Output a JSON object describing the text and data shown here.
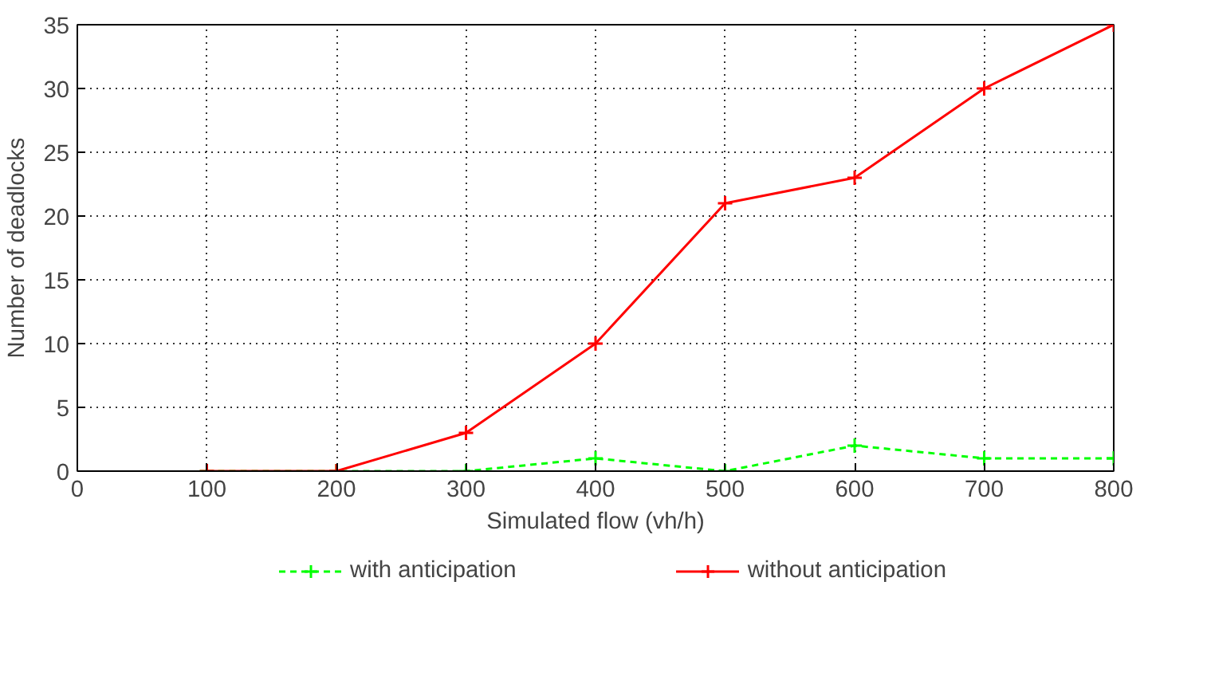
{
  "chart_data": {
    "type": "line",
    "xlabel": "Simulated flow (vh/h)",
    "ylabel": "Number of deadlocks",
    "x": [
      100,
      200,
      300,
      400,
      500,
      600,
      700,
      800
    ],
    "series": [
      {
        "name": "with anticipation",
        "color": "#00ff00",
        "values": [
          0,
          0,
          0,
          1,
          0,
          2,
          1,
          1
        ],
        "line_style": "dashed",
        "marker": "cross"
      },
      {
        "name": "without anticipation",
        "color": "#ff0000",
        "values": [
          0,
          0,
          3,
          10,
          21,
          23,
          30,
          35
        ],
        "line_style": "solid",
        "marker": "cross"
      }
    ],
    "xlim": [
      0,
      800
    ],
    "ylim": [
      0,
      35
    ],
    "xticks": [
      0,
      100,
      200,
      300,
      400,
      500,
      600,
      700,
      800
    ],
    "yticks": [
      0,
      5,
      10,
      15,
      20,
      25,
      30,
      35
    ],
    "grid": true,
    "legend": "bottom"
  }
}
